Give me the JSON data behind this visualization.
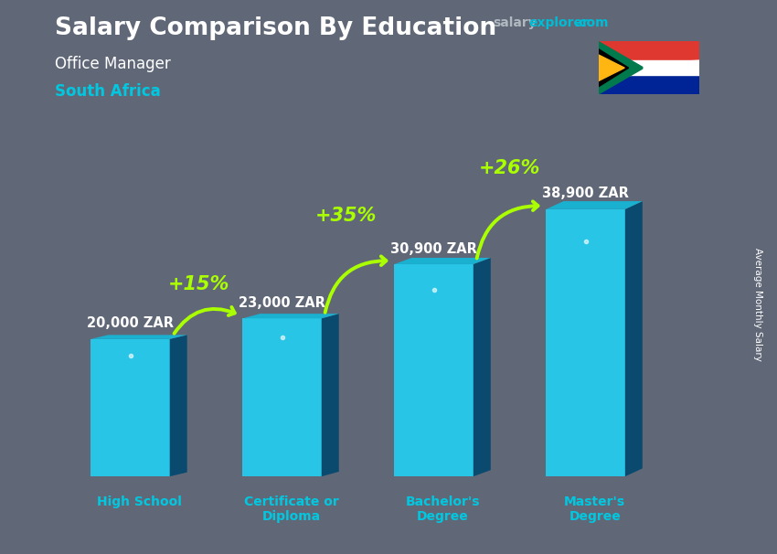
{
  "title": "Salary Comparison By Education",
  "subtitle1": "Office Manager",
  "subtitle2": "South Africa",
  "ylabel": "Average Monthly Salary",
  "categories": [
    "High School",
    "Certificate or\nDiploma",
    "Bachelor's\nDegree",
    "Master's\nDegree"
  ],
  "values": [
    20000,
    23000,
    30900,
    38900
  ],
  "value_labels": [
    "20,000 ZAR",
    "23,000 ZAR",
    "30,900 ZAR",
    "38,900 ZAR"
  ],
  "pct_labels": [
    "+15%",
    "+35%",
    "+26%"
  ],
  "bar_front_color": "#29c5e6",
  "bar_side_color": "#0a4a6e",
  "bar_top_color": "#1ab0d0",
  "bg_color": "#606878",
  "title_color": "#ffffff",
  "subtitle1_color": "#ffffff",
  "subtitle2_color": "#00c8e0",
  "value_label_color": "#ffffff",
  "pct_color": "#aaff00",
  "arrow_color": "#aaff00",
  "xlabel_color": "#00c8e0",
  "site_salary_color": "#b0b8c0",
  "site_explorer_color": "#00bcd4",
  "site_dot_com_color": "#00bcd4",
  "bar_width": 0.52,
  "bar_depth": 0.12,
  "ylim": [
    0,
    50000
  ],
  "bar_positions": [
    0,
    1,
    2,
    3
  ]
}
